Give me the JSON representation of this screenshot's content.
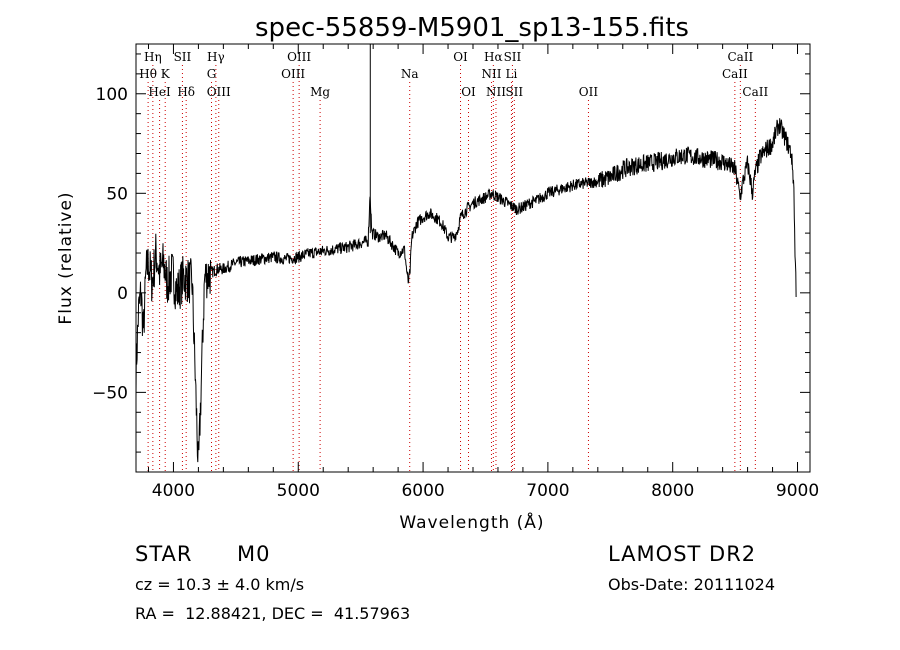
{
  "chart_data": {
    "type": "line",
    "title": "spec-55859-M5901_sp13-155.fits",
    "xlabel": "Wavelength (Å)",
    "ylabel": "Flux (relative)",
    "xlim": [
      3700,
      9100
    ],
    "ylim": [
      -90,
      125
    ],
    "xticks": [
      4000,
      5000,
      6000,
      7000,
      8000,
      9000
    ],
    "yticks": [
      -50,
      0,
      50,
      100
    ],
    "ytick_labels": [
      "−50",
      "0",
      "50",
      "100"
    ],
    "spectrum": {
      "x": [
        3700,
        3720,
        3740,
        3760,
        3780,
        3800,
        3830,
        3860,
        3890,
        3920,
        3950,
        3990,
        4030,
        4080,
        4150,
        4200,
        4250,
        4300,
        4350,
        4400,
        4500,
        4600,
        4700,
        4800,
        4900,
        5000,
        5100,
        5200,
        5300,
        5400,
        5500,
        5560,
        5575,
        5590,
        5650,
        5700,
        5800,
        5850,
        5880,
        5895,
        5910,
        5950,
        6000,
        6050,
        6100,
        6150,
        6200,
        6250,
        6280,
        6300,
        6350,
        6400,
        6500,
        6550,
        6600,
        6650,
        6700,
        6750,
        6800,
        6850,
        6900,
        7000,
        7100,
        7200,
        7300,
        7400,
        7500,
        7550,
        7600,
        7650,
        7700,
        7800,
        7900,
        8000,
        8100,
        8200,
        8300,
        8400,
        8500,
        8540,
        8560,
        8600,
        8640,
        8660,
        8700,
        8750,
        8800,
        8850,
        8900,
        8950,
        8970,
        8980,
        8990
      ],
      "y": [
        -40,
        -10,
        0,
        -20,
        10,
        15,
        5,
        20,
        10,
        15,
        5,
        10,
        0,
        8,
        5,
        -90,
        8,
        10,
        12,
        12,
        15,
        16,
        17,
        18,
        17,
        18,
        20,
        21,
        22,
        23,
        25,
        26,
        50,
        30,
        28,
        29,
        20,
        22,
        5,
        10,
        28,
        35,
        38,
        40,
        38,
        35,
        28,
        28,
        32,
        38,
        42,
        45,
        48,
        50,
        48,
        46,
        44,
        42,
        43,
        45,
        46,
        50,
        52,
        54,
        55,
        56,
        58,
        60,
        62,
        63,
        64,
        65,
        66,
        68,
        69,
        68,
        67,
        66,
        62,
        48,
        55,
        65,
        50,
        60,
        68,
        72,
        75,
        85,
        78,
        70,
        55,
        20,
        0
      ],
      "noise_amplitude": 3
    },
    "spectral_lines": [
      {
        "name": "Hη",
        "wavelength": 3835,
        "row": 0
      },
      {
        "name": "Hθ",
        "wavelength": 3797,
        "row": 1
      },
      {
        "name": "HeI",
        "wavelength": 3889,
        "row": 2
      },
      {
        "name": "K",
        "wavelength": 3934,
        "row": 1
      },
      {
        "name": "SII",
        "wavelength": 4072,
        "row": 0
      },
      {
        "name": "Hδ",
        "wavelength": 4102,
        "row": 2
      },
      {
        "name": "Hγ",
        "wavelength": 4340,
        "row": 0
      },
      {
        "name": "G",
        "wavelength": 4305,
        "row": 1
      },
      {
        "name": "OIII",
        "wavelength": 4363,
        "row": 2
      },
      {
        "name": "OIII",
        "wavelength": 5007,
        "row": 0
      },
      {
        "name": "OIII",
        "wavelength": 4959,
        "row": 1
      },
      {
        "name": "Mg",
        "wavelength": 5175,
        "row": 2
      },
      {
        "name": "Na",
        "wavelength": 5893,
        "row": 1
      },
      {
        "name": "OI",
        "wavelength": 6300,
        "row": 0
      },
      {
        "name": "OI",
        "wavelength": 6364,
        "row": 2
      },
      {
        "name": "Hα",
        "wavelength": 6563,
        "row": 0
      },
      {
        "name": "NII",
        "wavelength": 6548,
        "row": 1
      },
      {
        "name": "NII",
        "wavelength": 6584,
        "row": 2
      },
      {
        "name": "SII",
        "wavelength": 6716,
        "row": 0
      },
      {
        "name": "Li",
        "wavelength": 6708,
        "row": 1
      },
      {
        "name": "SII",
        "wavelength": 6731,
        "row": 2
      },
      {
        "name": "OII",
        "wavelength": 7325,
        "row": 2
      },
      {
        "name": "CaII",
        "wavelength": 8542,
        "row": 0
      },
      {
        "name": "CaII",
        "wavelength": 8498,
        "row": 1
      },
      {
        "name": "CaII",
        "wavelength": 8662,
        "row": 2
      }
    ]
  },
  "info": {
    "object_class": "STAR",
    "subclass": "M0",
    "survey": "LAMOST DR2",
    "redshift": "cz = 10.3 ± 4.0 km/s",
    "obs_date": "Obs-Date: 20111024",
    "coords": "RA =  12.88421, DEC =  41.57963"
  },
  "colors": {
    "axis": "#000000",
    "line_marker": "#cc0000",
    "spectrum": "#000000"
  }
}
